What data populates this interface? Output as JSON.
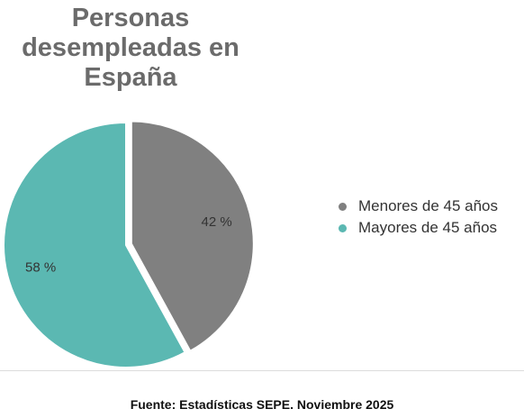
{
  "chart_data": {
    "type": "pie",
    "title": [
      "Personas",
      "desempleadas en",
      "España"
    ],
    "slices": [
      {
        "label": "Menores de 45 años",
        "value": 42,
        "data_label": "42 %",
        "color": "#808080",
        "exploded": true
      },
      {
        "label": "Mayores de 45 años",
        "value": 58,
        "data_label": "58 %",
        "color": "#5bb8b2",
        "exploded": false
      }
    ],
    "legend_position": "right"
  },
  "footer": {
    "source": "Fuente: Estadísticas SEPE. Noviembre 2025"
  }
}
